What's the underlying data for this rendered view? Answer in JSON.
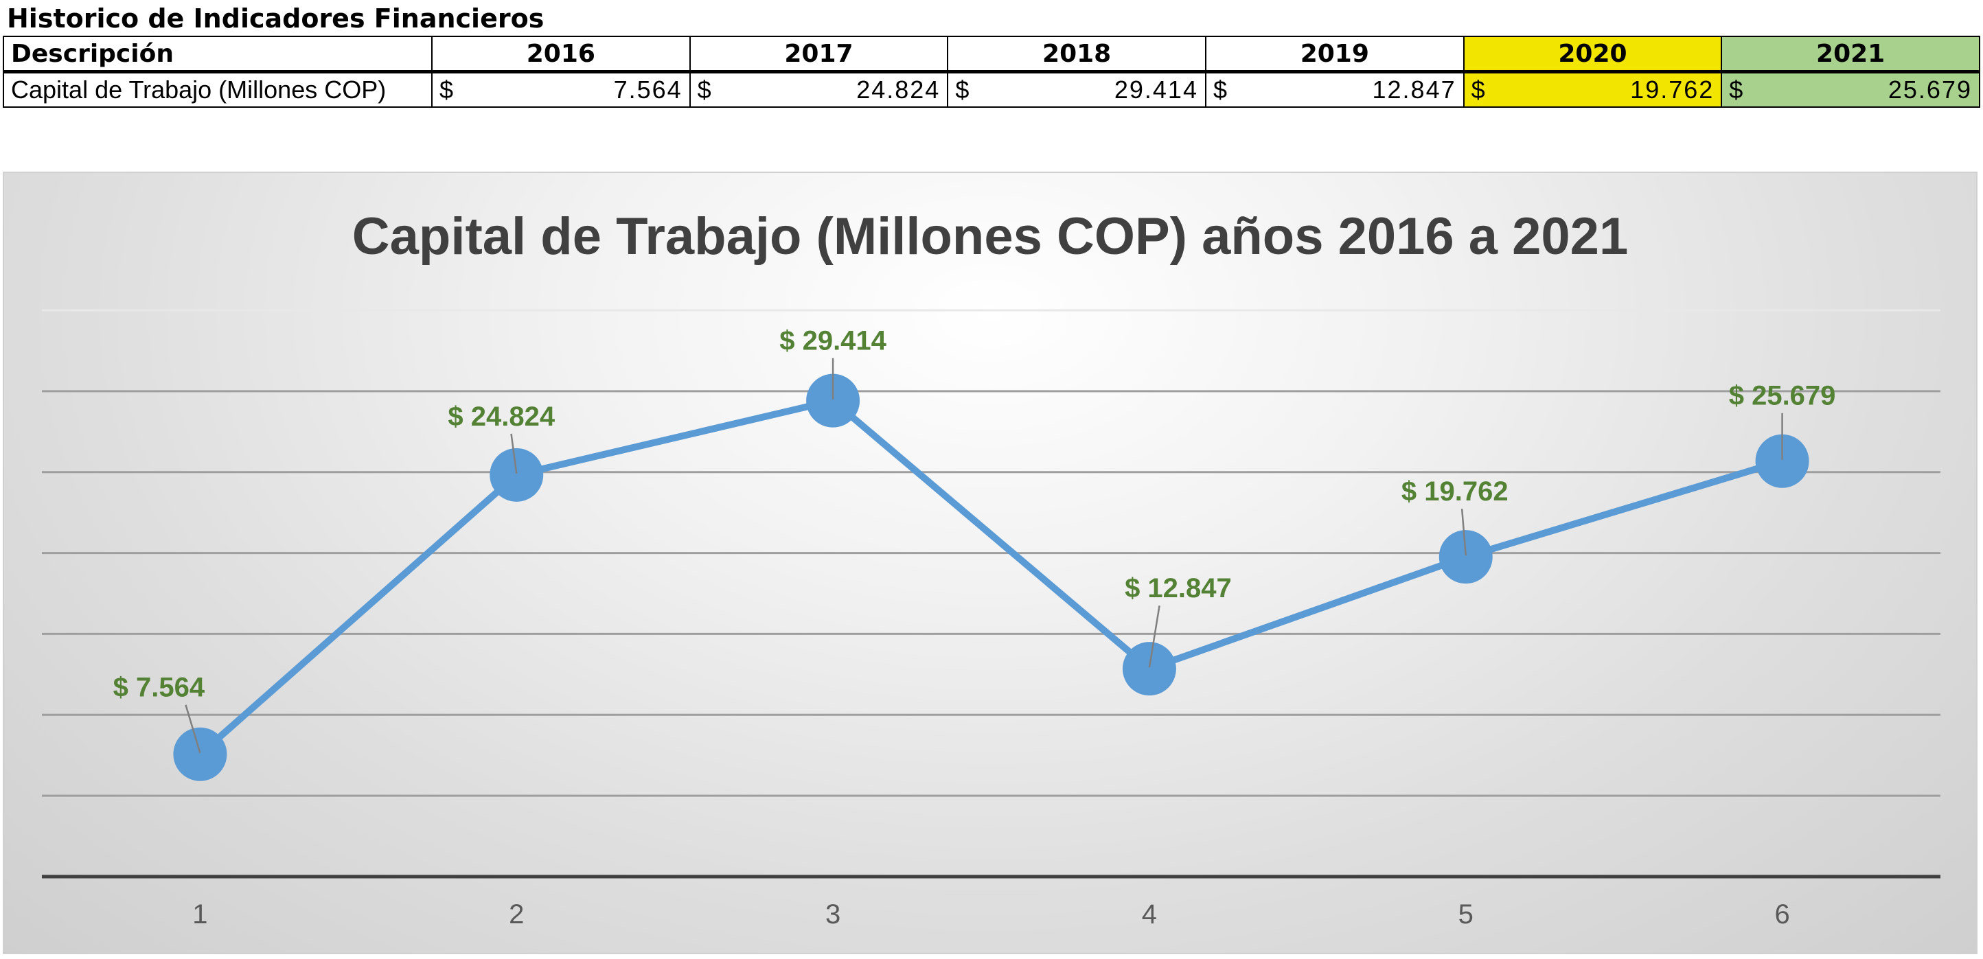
{
  "sheet": {
    "title": "Historico de Indicadores Financieros"
  },
  "table": {
    "header_desc": "Descripción",
    "years": [
      "2016",
      "2017",
      "2018",
      "2019",
      "2020",
      "2021"
    ],
    "row_label": "Capital de Trabajo (Millones COP)",
    "currency_symbol": "$",
    "values": [
      "7.564",
      "24.824",
      "29.414",
      "12.847",
      "19.762",
      "25.679"
    ],
    "highlight_colors": {
      "2020": "#f2e600",
      "2021": "#a9d18e"
    }
  },
  "chart_data": {
    "type": "line",
    "title": "Capital de Trabajo (Millones COP) años 2016 a 2021",
    "x": [
      1,
      2,
      3,
      4,
      5,
      6
    ],
    "x_tick_labels": [
      "1",
      "2",
      "3",
      "4",
      "5",
      "6"
    ],
    "values": [
      7564,
      24824,
      29414,
      12847,
      19762,
      25679
    ],
    "data_labels": [
      "$ 7.564",
      "$ 24.824",
      "$ 29.414",
      "$ 12.847",
      "$ 19.762",
      "$ 25.679"
    ],
    "ylim": [
      0,
      35000
    ],
    "y_gridline_step": 5000,
    "grid": true,
    "legend": false,
    "series_color": "#5b9bd5",
    "label_color": "#548235"
  }
}
